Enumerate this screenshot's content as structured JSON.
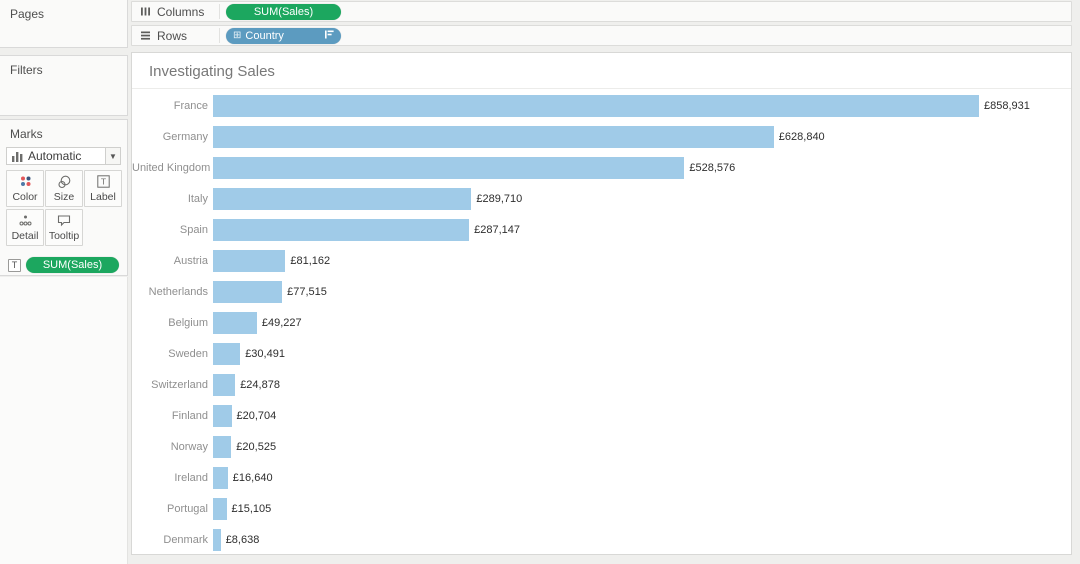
{
  "shelves": {
    "columns": {
      "label": "Columns",
      "pill": "SUM(Sales)"
    },
    "rows": {
      "label": "Rows",
      "pill": "Country"
    }
  },
  "sidebar": {
    "pages": {
      "title": "Pages"
    },
    "filters": {
      "title": "Filters"
    },
    "marks": {
      "title": "Marks",
      "mark_type": "Automatic",
      "buttons": [
        {
          "label": "Color"
        },
        {
          "label": "Size"
        },
        {
          "label": "Label"
        },
        {
          "label": "Detail"
        },
        {
          "label": "Tooltip"
        }
      ],
      "encoding_icon": "T",
      "encoding_pill": "SUM(Sales)"
    }
  },
  "chart_data": {
    "type": "bar",
    "orientation": "horizontal",
    "title": "Investigating Sales",
    "xlabel": "SUM(Sales)",
    "ylabel": "Country",
    "sort": "descending by value",
    "grid": "off",
    "legend": "off",
    "categories": [
      "France",
      "Germany",
      "United Kingdom",
      "Italy",
      "Spain",
      "Austria",
      "Netherlands",
      "Belgium",
      "Sweden",
      "Switzerland",
      "Finland",
      "Norway",
      "Ireland",
      "Portugal",
      "Denmark"
    ],
    "values": [
      858931,
      628840,
      528576,
      289710,
      287147,
      81162,
      77515,
      49227,
      30491,
      24878,
      20704,
      20525,
      16640,
      15105,
      8638
    ],
    "value_labels": [
      "£858,931",
      "£628,840",
      "£528,576",
      "£289,710",
      "£287,147",
      "£81,162",
      "£77,515",
      "£49,227",
      "£30,491",
      "£24,878",
      "£20,704",
      "£20,525",
      "£16,640",
      "£15,105",
      "£8,638"
    ],
    "bar_color": "#a0cbe8"
  },
  "colors": {
    "measure_pill": "#1ca75f",
    "dimension_pill": "#5c9bc0",
    "bar": "#a0cbe8"
  }
}
